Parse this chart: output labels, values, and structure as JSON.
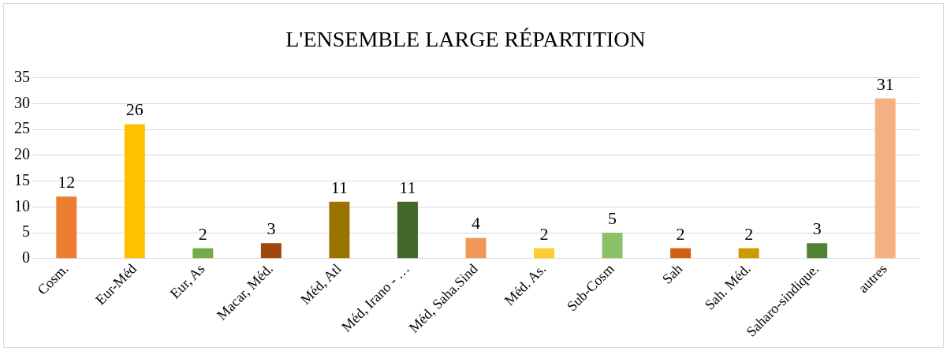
{
  "chart_data": {
    "type": "bar",
    "title": "L'ENSEMBLE LARGE RÉPARTITION",
    "categories": [
      "Cosm.",
      "Eur-Méd",
      "Eur, As",
      "Macar, Méd.",
      "Méd, Atl",
      "Méd, Irano - …",
      "Méd, Saha.Sind",
      "Méd. As.",
      "Sub-Cosm",
      "Sah",
      "Sah. Méd.",
      "Saharo-sindique.",
      "autres"
    ],
    "values": [
      12,
      26,
      2,
      3,
      11,
      11,
      4,
      2,
      5,
      2,
      2,
      3,
      31
    ],
    "colors": [
      "#ed7d31",
      "#ffc000",
      "#70ad47",
      "#9e480e",
      "#997300",
      "#43682b",
      "#f1975a",
      "#ffcd33",
      "#8cc168",
      "#d26012",
      "#cc9a00",
      "#548235",
      "#f4b183"
    ],
    "ylim": [
      0,
      35
    ],
    "yticks": [
      0,
      5,
      10,
      15,
      20,
      25,
      30,
      35
    ],
    "grid": "y",
    "data_labels": true,
    "legend": false
  }
}
